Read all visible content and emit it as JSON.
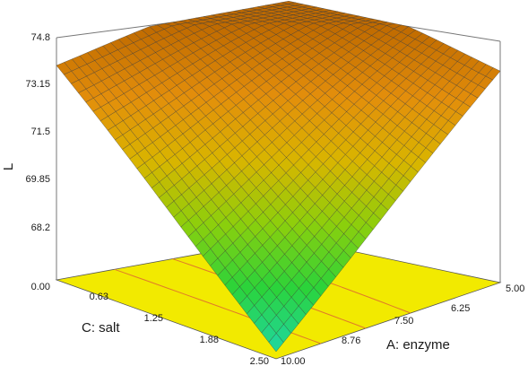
{
  "chart_data": {
    "type": "surface3d",
    "title": "",
    "zlabel": "L",
    "xlabel": "A: enzyme",
    "ylabel": "C: salt",
    "x_ticks": [
      "5.00",
      "6.25",
      "7.50",
      "8.76",
      "10.00"
    ],
    "y_ticks": [
      "0.00",
      "0.63",
      "1.25",
      "1.88",
      "2.50"
    ],
    "z_ticks": [
      "68.2",
      "69.85",
      "71.5",
      "73.15",
      "74.8"
    ],
    "xlim": [
      5.0,
      10.0
    ],
    "ylim": [
      0.0,
      2.5
    ],
    "zlim": [
      66.55,
      74.8
    ],
    "surface_corners": [
      {
        "enzyme": 5.0,
        "salt": 0.0,
        "L": 74.6
      },
      {
        "enzyme": 10.0,
        "salt": 0.0,
        "L": 73.7
      },
      {
        "enzyme": 5.0,
        "salt": 2.5,
        "L": 73.6
      },
      {
        "enzyme": 10.0,
        "salt": 2.5,
        "L": 66.8
      }
    ],
    "surface_peak": {
      "enzyme": 6.7,
      "salt": 0.85,
      "L": 74.8
    },
    "colormap": [
      "#1fd7a4",
      "#2bd33a",
      "#8ccf0c",
      "#d9b500",
      "#e38e0b",
      "#bf6a00"
    ],
    "floor_color": "#f2ea00",
    "contour_color": "#e07a2a",
    "mesh_color": "#3a3a3a"
  }
}
